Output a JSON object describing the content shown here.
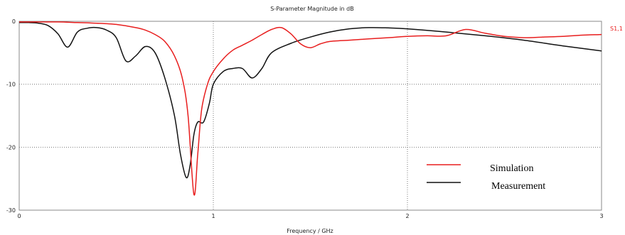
{
  "chart_data": {
    "type": "line",
    "title": "S-Parameter Magnitude in dB",
    "xlabel": "Frequency / GHz",
    "ylabel": "",
    "xlim": [
      0,
      3
    ],
    "ylim": [
      -30,
      0
    ],
    "xticks": [
      0,
      1,
      2,
      3
    ],
    "xtick_labels": [
      "0",
      "1",
      "2",
      "3"
    ],
    "yticks": [
      0,
      -10,
      -20,
      -30
    ],
    "ytick_labels": [
      "0",
      "-10",
      "-20",
      "-30"
    ],
    "grid": true,
    "curve_tag": "S1,1",
    "legend_position": "lower-right",
    "series": [
      {
        "name": "Simulation",
        "color": "#e81e1e",
        "x": [
          0,
          0.1,
          0.2,
          0.3,
          0.4,
          0.5,
          0.6,
          0.65,
          0.7,
          0.75,
          0.8,
          0.84,
          0.87,
          0.9,
          0.92,
          0.94,
          0.97,
          1.0,
          1.05,
          1.1,
          1.15,
          1.2,
          1.25,
          1.3,
          1.35,
          1.4,
          1.45,
          1.5,
          1.55,
          1.6,
          1.7,
          1.8,
          1.9,
          2.0,
          2.1,
          2.2,
          2.3,
          2.4,
          2.5,
          2.6,
          2.7,
          2.8,
          2.9,
          3.0
        ],
        "y": [
          -0.1,
          -0.1,
          -0.1,
          -0.2,
          -0.3,
          -0.5,
          -1.0,
          -1.4,
          -2.1,
          -3.2,
          -5.5,
          -9.0,
          -15.0,
          -27.5,
          -21.0,
          -14.0,
          -10.0,
          -8.0,
          -6.0,
          -4.6,
          -3.8,
          -3.0,
          -2.1,
          -1.3,
          -1.0,
          -2.0,
          -3.6,
          -4.2,
          -3.6,
          -3.2,
          -3.0,
          -2.8,
          -2.6,
          -2.4,
          -2.3,
          -2.3,
          -1.3,
          -1.9,
          -2.4,
          -2.6,
          -2.5,
          -2.4,
          -2.2,
          -2.1
        ]
      },
      {
        "name": "Measurement",
        "color": "#111111",
        "x": [
          0,
          0.05,
          0.1,
          0.15,
          0.2,
          0.25,
          0.3,
          0.35,
          0.4,
          0.45,
          0.5,
          0.55,
          0.6,
          0.65,
          0.7,
          0.75,
          0.8,
          0.83,
          0.86,
          0.88,
          0.9,
          0.92,
          0.95,
          0.98,
          1.0,
          1.05,
          1.1,
          1.15,
          1.2,
          1.25,
          1.3,
          1.4,
          1.5,
          1.6,
          1.7,
          1.8,
          1.9,
          2.0,
          2.2,
          2.4,
          2.6,
          2.8,
          3.0
        ],
        "y": [
          -0.2,
          -0.2,
          -0.3,
          -0.7,
          -2.0,
          -4.1,
          -1.7,
          -1.1,
          -1.0,
          -1.4,
          -2.6,
          -6.3,
          -5.5,
          -4.0,
          -5.0,
          -9.0,
          -15.0,
          -21.0,
          -24.8,
          -23.0,
          -18.0,
          -16.0,
          -16.0,
          -13.0,
          -10.0,
          -8.0,
          -7.5,
          -7.5,
          -9.0,
          -7.5,
          -5.0,
          -3.5,
          -2.5,
          -1.7,
          -1.2,
          -1.0,
          -1.05,
          -1.2,
          -1.7,
          -2.3,
          -3.0,
          -3.9,
          -4.7
        ]
      }
    ]
  }
}
